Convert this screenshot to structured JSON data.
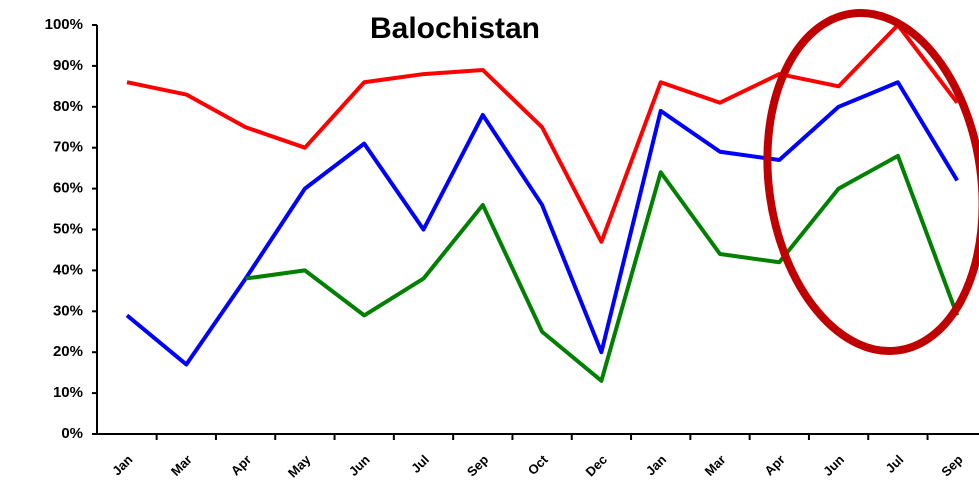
{
  "chart_data": {
    "type": "line",
    "title": "Balochistan",
    "categories": [
      "Jan",
      "Mar",
      "Apr",
      "May",
      "Jun",
      "Jul",
      "Sep",
      "Oct",
      "Dec",
      "Jan",
      "Mar",
      "Apr",
      "Jun",
      "Jul",
      "Sep"
    ],
    "series": [
      {
        "color": "#ff0000",
        "values": [
          86,
          83,
          75,
          70,
          86,
          88,
          89,
          75,
          47,
          86,
          81,
          88,
          85,
          100,
          81
        ]
      },
      {
        "color": "#0000ff",
        "values": [
          29,
          17,
          38,
          60,
          71,
          50,
          78,
          56,
          20,
          79,
          69,
          67,
          80,
          86,
          62
        ]
      },
      {
        "color": "#008000",
        "values": [
          null,
          null,
          38,
          40,
          29,
          38,
          56,
          25,
          13,
          64,
          44,
          42,
          60,
          68,
          29
        ]
      }
    ],
    "ylim": [
      0,
      100
    ],
    "yticks": [
      {
        "value": 0,
        "label": "0%"
      },
      {
        "value": 10,
        "label": "10%"
      },
      {
        "value": 20,
        "label": "20%"
      },
      {
        "value": 30,
        "label": "30%"
      },
      {
        "value": 40,
        "label": "40%"
      },
      {
        "value": 50,
        "label": "50%"
      },
      {
        "value": 60,
        "label": "60%"
      },
      {
        "value": 70,
        "label": "70%"
      },
      {
        "value": 80,
        "label": "80%"
      },
      {
        "value": 90,
        "label": "90%"
      },
      {
        "value": 100,
        "label": "100%"
      }
    ],
    "grid": false
  }
}
